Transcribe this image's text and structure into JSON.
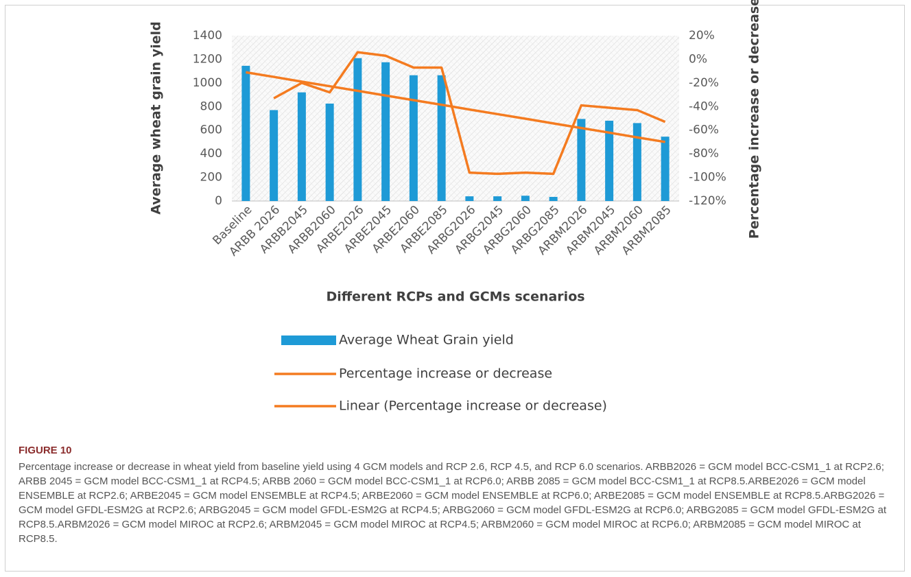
{
  "chart_data": {
    "type": "bar",
    "x_label": "Different RCPs and GCMs scenarios",
    "y_label": "Average wheat grain yield",
    "y2_label": "Percentage increase or decrease",
    "categories": [
      "Baseline",
      "ARBB 2026",
      "ARBB2045",
      "ARBB2060",
      "ARBE2026",
      "ARBE2045",
      "ARBE2060",
      "ARBE2085",
      "ARBG2026",
      "ARBG2045",
      "ARBG2060",
      "ARBG2085",
      "ARBM2026",
      "ARBM2045",
      "ARBM2060",
      "ARBM2085"
    ],
    "series": [
      {
        "name": "Average Wheat Grain yield",
        "type": "bar",
        "color": "#1e9ad6",
        "axis": "y",
        "values": [
          1145,
          770,
          920,
          825,
          1210,
          1175,
          1065,
          1065,
          40,
          40,
          45,
          35,
          695,
          680,
          660,
          545
        ]
      },
      {
        "name": "Percentage increase or decrease",
        "type": "line",
        "color": "#f47b20",
        "axis": "y2",
        "values": [
          null,
          -33,
          -20,
          -28,
          6,
          3,
          -7,
          -7,
          -96,
          -97,
          -96,
          -97,
          -39,
          -41,
          -43,
          -53
        ]
      },
      {
        "name": "Linear (Percentage increase or decrease)",
        "type": "line",
        "color": "#f47b20",
        "axis": "y2",
        "values": [
          -11,
          -14.9,
          -18.9,
          -22.8,
          -26.7,
          -30.7,
          -34.6,
          -38.5,
          -42.5,
          -46.4,
          -50.3,
          -54.3,
          -58.2,
          -62.1,
          -66.1,
          -70
        ]
      }
    ],
    "ylim": [
      0,
      1400
    ],
    "yticks": [
      0,
      200,
      400,
      600,
      800,
      1000,
      1200,
      1400
    ],
    "y2lim": [
      -120,
      20
    ],
    "y2ticks": [
      {
        "value": -120,
        "label": "-120%"
      },
      {
        "value": -100,
        "label": "-100%"
      },
      {
        "value": -80,
        "label": "-80%"
      },
      {
        "value": -60,
        "label": "-60%"
      },
      {
        "value": -40,
        "label": "-40%"
      },
      {
        "value": -20,
        "label": "-20%"
      },
      {
        "value": 0,
        "label": "0%"
      },
      {
        "value": 20,
        "label": "20%"
      }
    ],
    "grid": false,
    "legend": "bottom"
  },
  "figure": {
    "label": "FIGURE 10",
    "caption": "Percentage increase or decrease in wheat yield from baseline yield using 4 GCM models and RCP 2.6, RCP 4.5, and RCP 6.0 scenarios. ARBB2026 = GCM model BCC-CSM1_1 at RCP2.6; ARBB 2045 = GCM model BCC-CSM1_1 at RCP4.5; ARBB 2060 = GCM model BCC-CSM1_1 at RCP6.0; ARBB 2085 = GCM model BCC-CSM1_1 at RCP8.5.ARBE2026 = GCM model ENSEMBLE at RCP2.6; ARBE2045 = GCM model ENSEMBLE at RCP4.5; ARBE2060 = GCM model ENSEMBLE at RCP6.0; ARBE2085 = GCM model ENSEMBLE at RCP8.5.ARBG2026 = GCM model GFDL-ESM2G at RCP2.6; ARBG2045 = GCM model GFDL-ESM2G at RCP4.5; ARBG2060 = GCM model GFDL-ESM2G at RCP6.0; ARBG2085 = GCM model GFDL-ESM2G at RCP8.5.ARBM2026 = GCM model MIROC at RCP2.6; ARBM2045 = GCM model MIROC at RCP4.5; ARBM2060 = GCM model MIROC at RCP6.0; ARBM2085 = GCM model MIROC at RCP8.5."
  }
}
